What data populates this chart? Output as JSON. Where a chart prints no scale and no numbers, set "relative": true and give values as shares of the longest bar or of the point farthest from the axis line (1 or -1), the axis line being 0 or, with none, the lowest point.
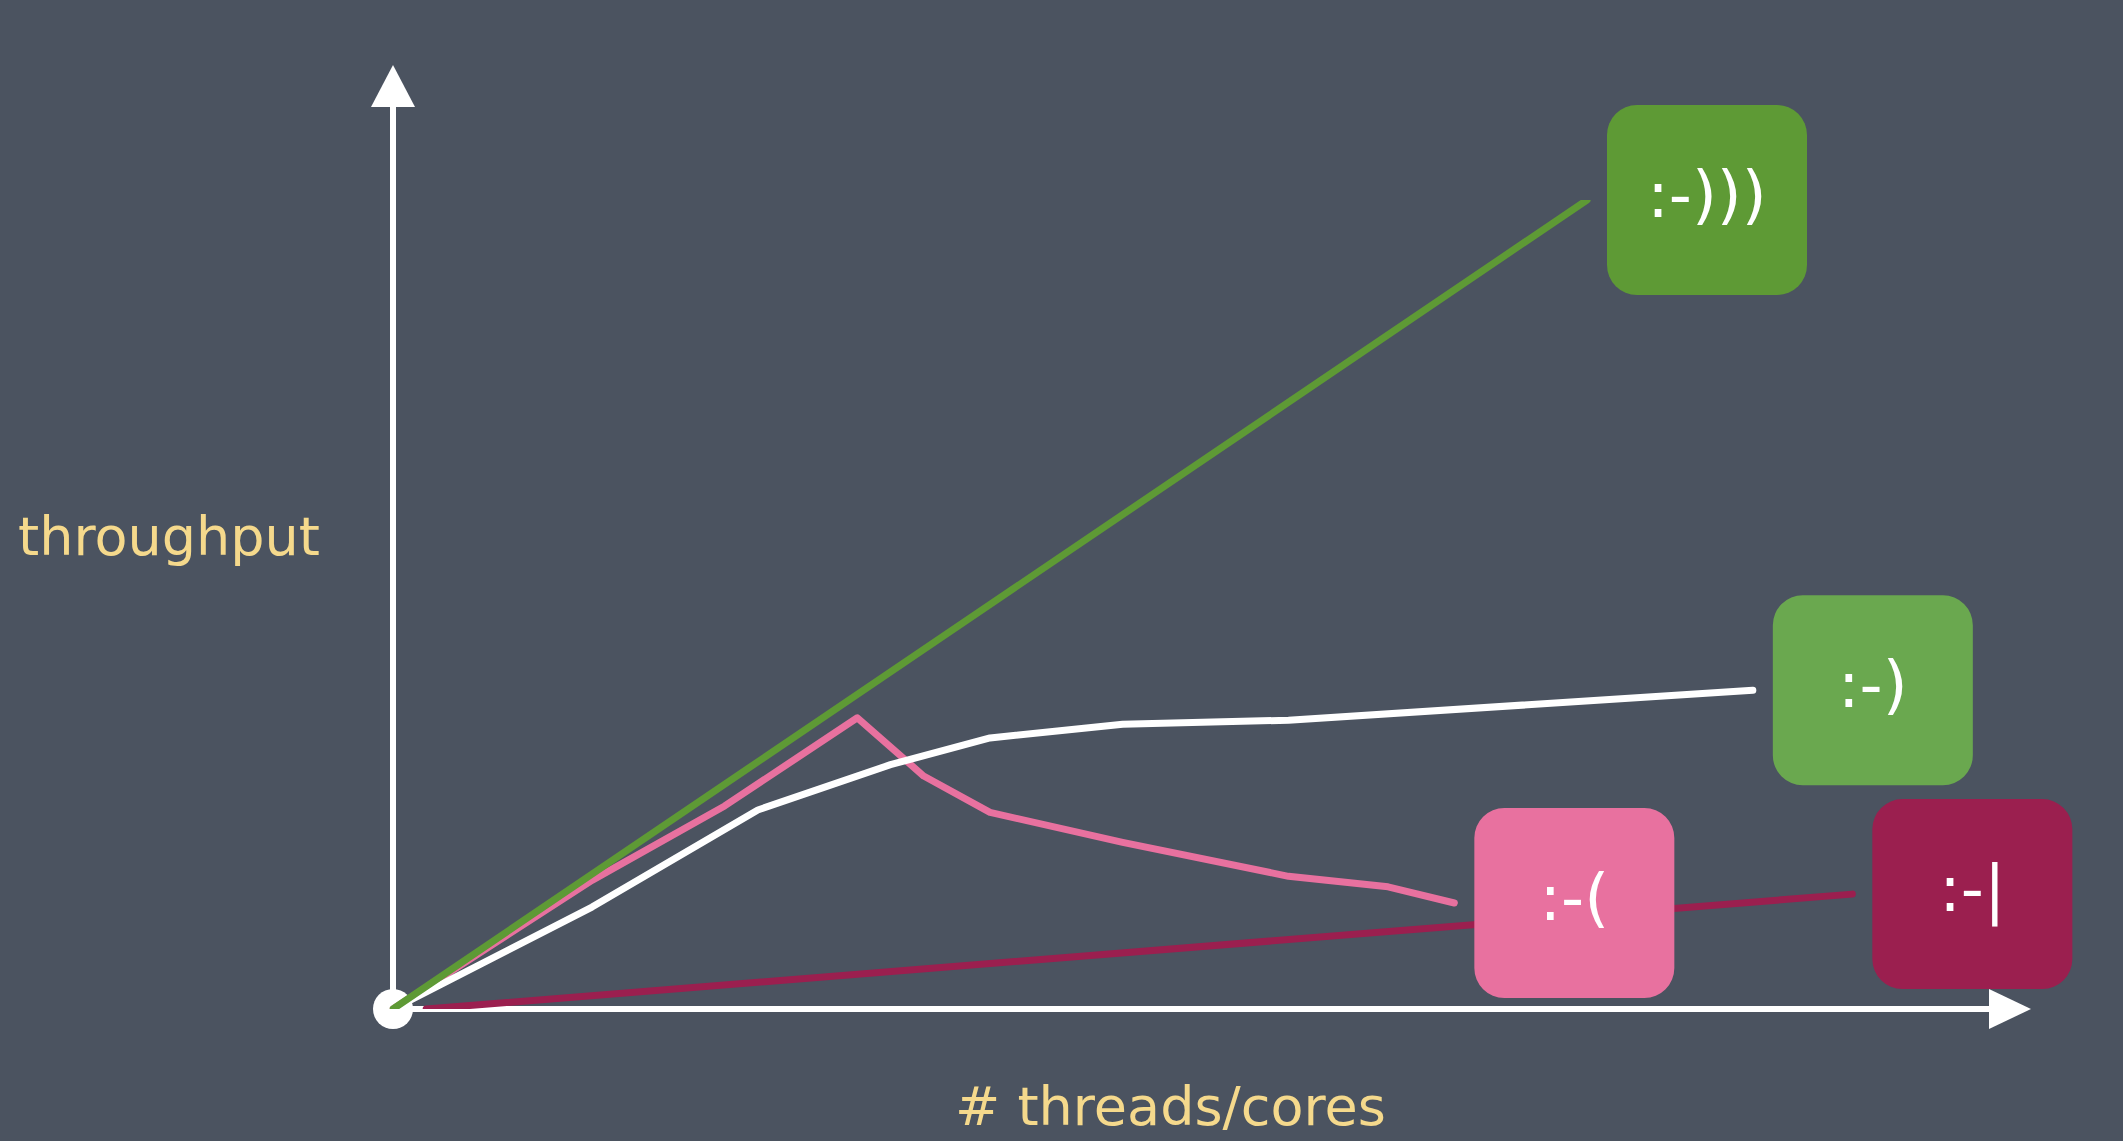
{
  "chart_data": {
    "type": "line",
    "relative": true,
    "xlabel": "# threads/cores",
    "ylabel": "throughput",
    "legend": false,
    "marker": "none",
    "line_style": "solid",
    "categories": [
      null,
      null,
      null,
      null,
      null,
      null,
      null,
      null,
      null,
      null,
      null,
      null,
      null,
      null,
      null,
      null,
      null,
      null,
      null,
      null,
      null,
      null,
      null,
      null,
      null,
      null,
      null,
      null,
      null,
      null,
      null,
      null,
      null,
      null,
      null,
      null,
      null,
      null,
      null,
      null,
      null,
      null,
      null,
      null,
      null,
      null,
      null,
      null,
      null
    ],
    "series": [
      {
        "name": ":-)))",
        "color": "#5e9a35",
        "values": [
          0,
          null,
          null,
          null,
          null,
          null,
          null,
          null,
          null,
          null,
          null,
          null,
          null,
          null,
          null,
          null,
          null,
          null,
          null,
          null,
          null,
          null,
          null,
          null,
          null,
          null,
          null,
          null,
          null,
          null,
          null,
          null,
          null,
          null,
          null,
          null,
          1,
          null,
          null,
          null,
          null,
          null,
          null,
          null,
          null,
          null,
          null,
          null,
          null
        ]
      },
      {
        "name": ":-)",
        "color": "#ffffff",
        "values": [
          0,
          null,
          null,
          null,
          null,
          null,
          0.126,
          null,
          null,
          null,
          null,
          0.246,
          null,
          null,
          null,
          0.302,
          null,
          null,
          0.335,
          null,
          null,
          null,
          0.352,
          null,
          null,
          null,
          null,
          0.357,
          null,
          null,
          null,
          null,
          null,
          null,
          null,
          null,
          null,
          null,
          null,
          null,
          null,
          0.394,
          null,
          null,
          null,
          null,
          null,
          null,
          null
        ]
      },
      {
        "name": ":-(",
        "color": "#e8719f",
        "values": [
          0,
          null,
          null,
          null,
          null,
          null,
          0.159,
          null,
          null,
          null,
          0.251,
          null,
          null,
          null,
          0.36,
          null,
          0.288,
          null,
          0.243,
          null,
          null,
          null,
          0.206,
          null,
          null,
          null,
          null,
          0.164,
          null,
          null,
          0.151,
          null,
          0.131,
          null,
          null,
          null,
          null,
          null,
          null,
          null,
          null,
          null,
          null,
          null,
          null,
          null,
          null,
          null,
          null
        ]
      },
      {
        "name": ":-|",
        "color": "#9b1f4f",
        "values": [
          null,
          0,
          null,
          null,
          null,
          null,
          null,
          null,
          null,
          null,
          null,
          null,
          null,
          null,
          null,
          null,
          null,
          null,
          null,
          null,
          null,
          null,
          null,
          null,
          null,
          null,
          null,
          null,
          null,
          null,
          null,
          null,
          null,
          null,
          null,
          null,
          null,
          null,
          null,
          null,
          null,
          null,
          null,
          null,
          0.142,
          null,
          null,
          null,
          null
        ]
      }
    ]
  }
}
